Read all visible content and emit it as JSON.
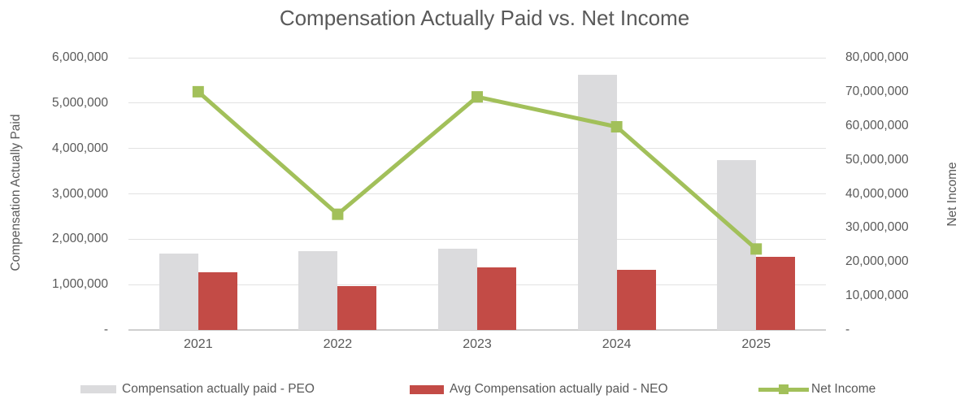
{
  "chart_data": {
    "type": "combo",
    "subtype": "grouped-bars-with-line",
    "title": "Compensation Actually Paid vs. Net Income",
    "categories": [
      "2021",
      "2022",
      "2023",
      "2024",
      "2025"
    ],
    "series": [
      {
        "name": "Compensation actually paid - PEO",
        "type": "bar",
        "axis": "left",
        "color": "#dbdbdd",
        "values": [
          1690000,
          1730000,
          1800000,
          5620000,
          3740000
        ]
      },
      {
        "name": "Avg Compensation actually paid - NEO",
        "type": "bar",
        "axis": "left",
        "color": "#c34b46",
        "values": [
          1270000,
          970000,
          1380000,
          1330000,
          1610000
        ]
      },
      {
        "name": "Net Income",
        "type": "line",
        "axis": "right",
        "color": "#a2c05a",
        "marker": "square",
        "values": [
          70000000,
          34000000,
          68500000,
          59700000,
          23800000
        ]
      }
    ],
    "left_axis": {
      "title": "Compensation Actually Paid",
      "min": 0,
      "max": 6000000,
      "ticks": [
        {
          "value": 6000000,
          "label": "6,000,000"
        },
        {
          "value": 5000000,
          "label": "5,000,000"
        },
        {
          "value": 4000000,
          "label": "4,000,000"
        },
        {
          "value": 3000000,
          "label": "3,000,000"
        },
        {
          "value": 2000000,
          "label": "2,000,000"
        },
        {
          "value": 1000000,
          "label": "1,000,000"
        },
        {
          "value": 0,
          "label": "-"
        }
      ]
    },
    "right_axis": {
      "title": "Net Income",
      "min": 0,
      "max": 80000000,
      "ticks": [
        {
          "value": 80000000,
          "label": "80,000,000"
        },
        {
          "value": 70000000,
          "label": "70,000,000"
        },
        {
          "value": 60000000,
          "label": "60,000,000"
        },
        {
          "value": 50000000,
          "label": "50,000,000"
        },
        {
          "value": 40000000,
          "label": "40,000,000"
        },
        {
          "value": 30000000,
          "label": "30,000,000"
        },
        {
          "value": 20000000,
          "label": "20,000,000"
        },
        {
          "value": 10000000,
          "label": "10,000,000"
        },
        {
          "value": 0,
          "label": "-"
        }
      ]
    },
    "legend_position": "bottom",
    "grid": "horizontal-only",
    "colors": {
      "text": "#595959",
      "gridline": "#e2e2e2",
      "axis_line": "#cfcfcf",
      "background": "#ffffff"
    }
  }
}
